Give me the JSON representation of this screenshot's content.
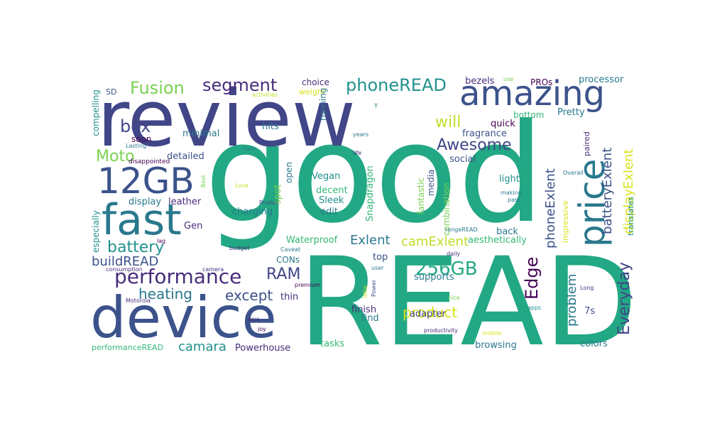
{
  "palette": {
    "green": "#22a884",
    "indigo": "#404687",
    "slate": "#3b528b",
    "teal": "#2a788e",
    "cyan": "#21918c",
    "purple": "#472d7b",
    "dark": "#440154",
    "lime": "#bddf26",
    "yellow": "#d8e219",
    "light_green": "#7ad151",
    "mint": "#5ec962",
    "sea": "#35b779"
  },
  "words": {
    "good": "good",
    "read": "READ",
    "review": "review",
    "device": "device",
    "amazing": "amazing",
    "price": "price",
    "fast": "fast",
    "gb12": "12GB",
    "performance": "performance",
    "gb256": "256GB",
    "phone_read": "phoneREAD",
    "segment": "segment",
    "fusion": "Fusion",
    "awesome": "Awesome",
    "box": "box",
    "moto": "Moto",
    "battery": "battery",
    "ram": "RAM",
    "edge": "Edge",
    "everyday": "Everyday",
    "product": "product",
    "except": "except",
    "heating": "heating",
    "build_read": "buildREAD",
    "cam_exlent": "camExlent",
    "exlent": "Exlent",
    "camara": "camara",
    "will": "will",
    "phone_exlent": "phoneExlent",
    "battery_exlent": "batteryExlent",
    "display_exlent": "displayExlent",
    "problem": "problem",
    "choice": "choice",
    "weight": "weight",
    "processor": "processor",
    "bezels": "bezels",
    "pros": "PROs",
    "pretty": "Pretty",
    "bottom": "bottom",
    "quick": "quick",
    "fragrance": "fragrance",
    "social": "social",
    "light": "light",
    "detailed": "detailed",
    "minimal": "minimal",
    "hits": "hits",
    "soon": "soon",
    "sd": "SD",
    "compelling": "compelling",
    "display": "display",
    "leather": "leather",
    "gen": "Gen",
    "charging": "charging",
    "spot": "spot",
    "open": "open",
    "vegan": "Vegan",
    "decent": "decent",
    "sleek": "Sleek",
    "edit": "edit",
    "snapdragon": "Snapdragon",
    "fantastic": "fantastic",
    "media": "media",
    "combination": "combination",
    "back": "back",
    "aesthetically": "aesthetically",
    "impressive": "impressive",
    "translates": "translates",
    "paired": "paired",
    "especially": "especially",
    "waterproof": "Waterproof",
    "cons": "CONs",
    "top": "top",
    "supports": "supports",
    "finish": "finish",
    "find": "find",
    "adapter": "adapter",
    "thin": "thin",
    "powerhouse": "Powerhouse",
    "tasks": "tasks",
    "browsing": "browsing",
    "colors": "colors",
    "s7": "7s",
    "performance_read": "performanceREAD",
    "running": "running",
    "use": "use",
    "activities": "activities",
    "years": "years",
    "life": "life",
    "t": "T",
    "lasting": "Lasting",
    "class": "class",
    "disappointed": "disappointed",
    "best": "Best",
    "love": "Love",
    "produc": "Produc",
    "making": "making",
    "past": "past",
    "overall": "Overall",
    "range_read": "rangeREAD",
    "lag": "lag",
    "budget": "budget",
    "caveat": "Caveat",
    "daily": "daily",
    "user": "user",
    "consumption": "consumption",
    "camera": "camera",
    "premium": "premium",
    "little": "little",
    "power": "Power",
    "motorola": "Motorola",
    "epic": "epic",
    "joy": "joy",
    "nice": "nice",
    "productivity": "productivity",
    "apps": "apps",
    "long": "Long",
    "mobile": "mobile"
  }
}
